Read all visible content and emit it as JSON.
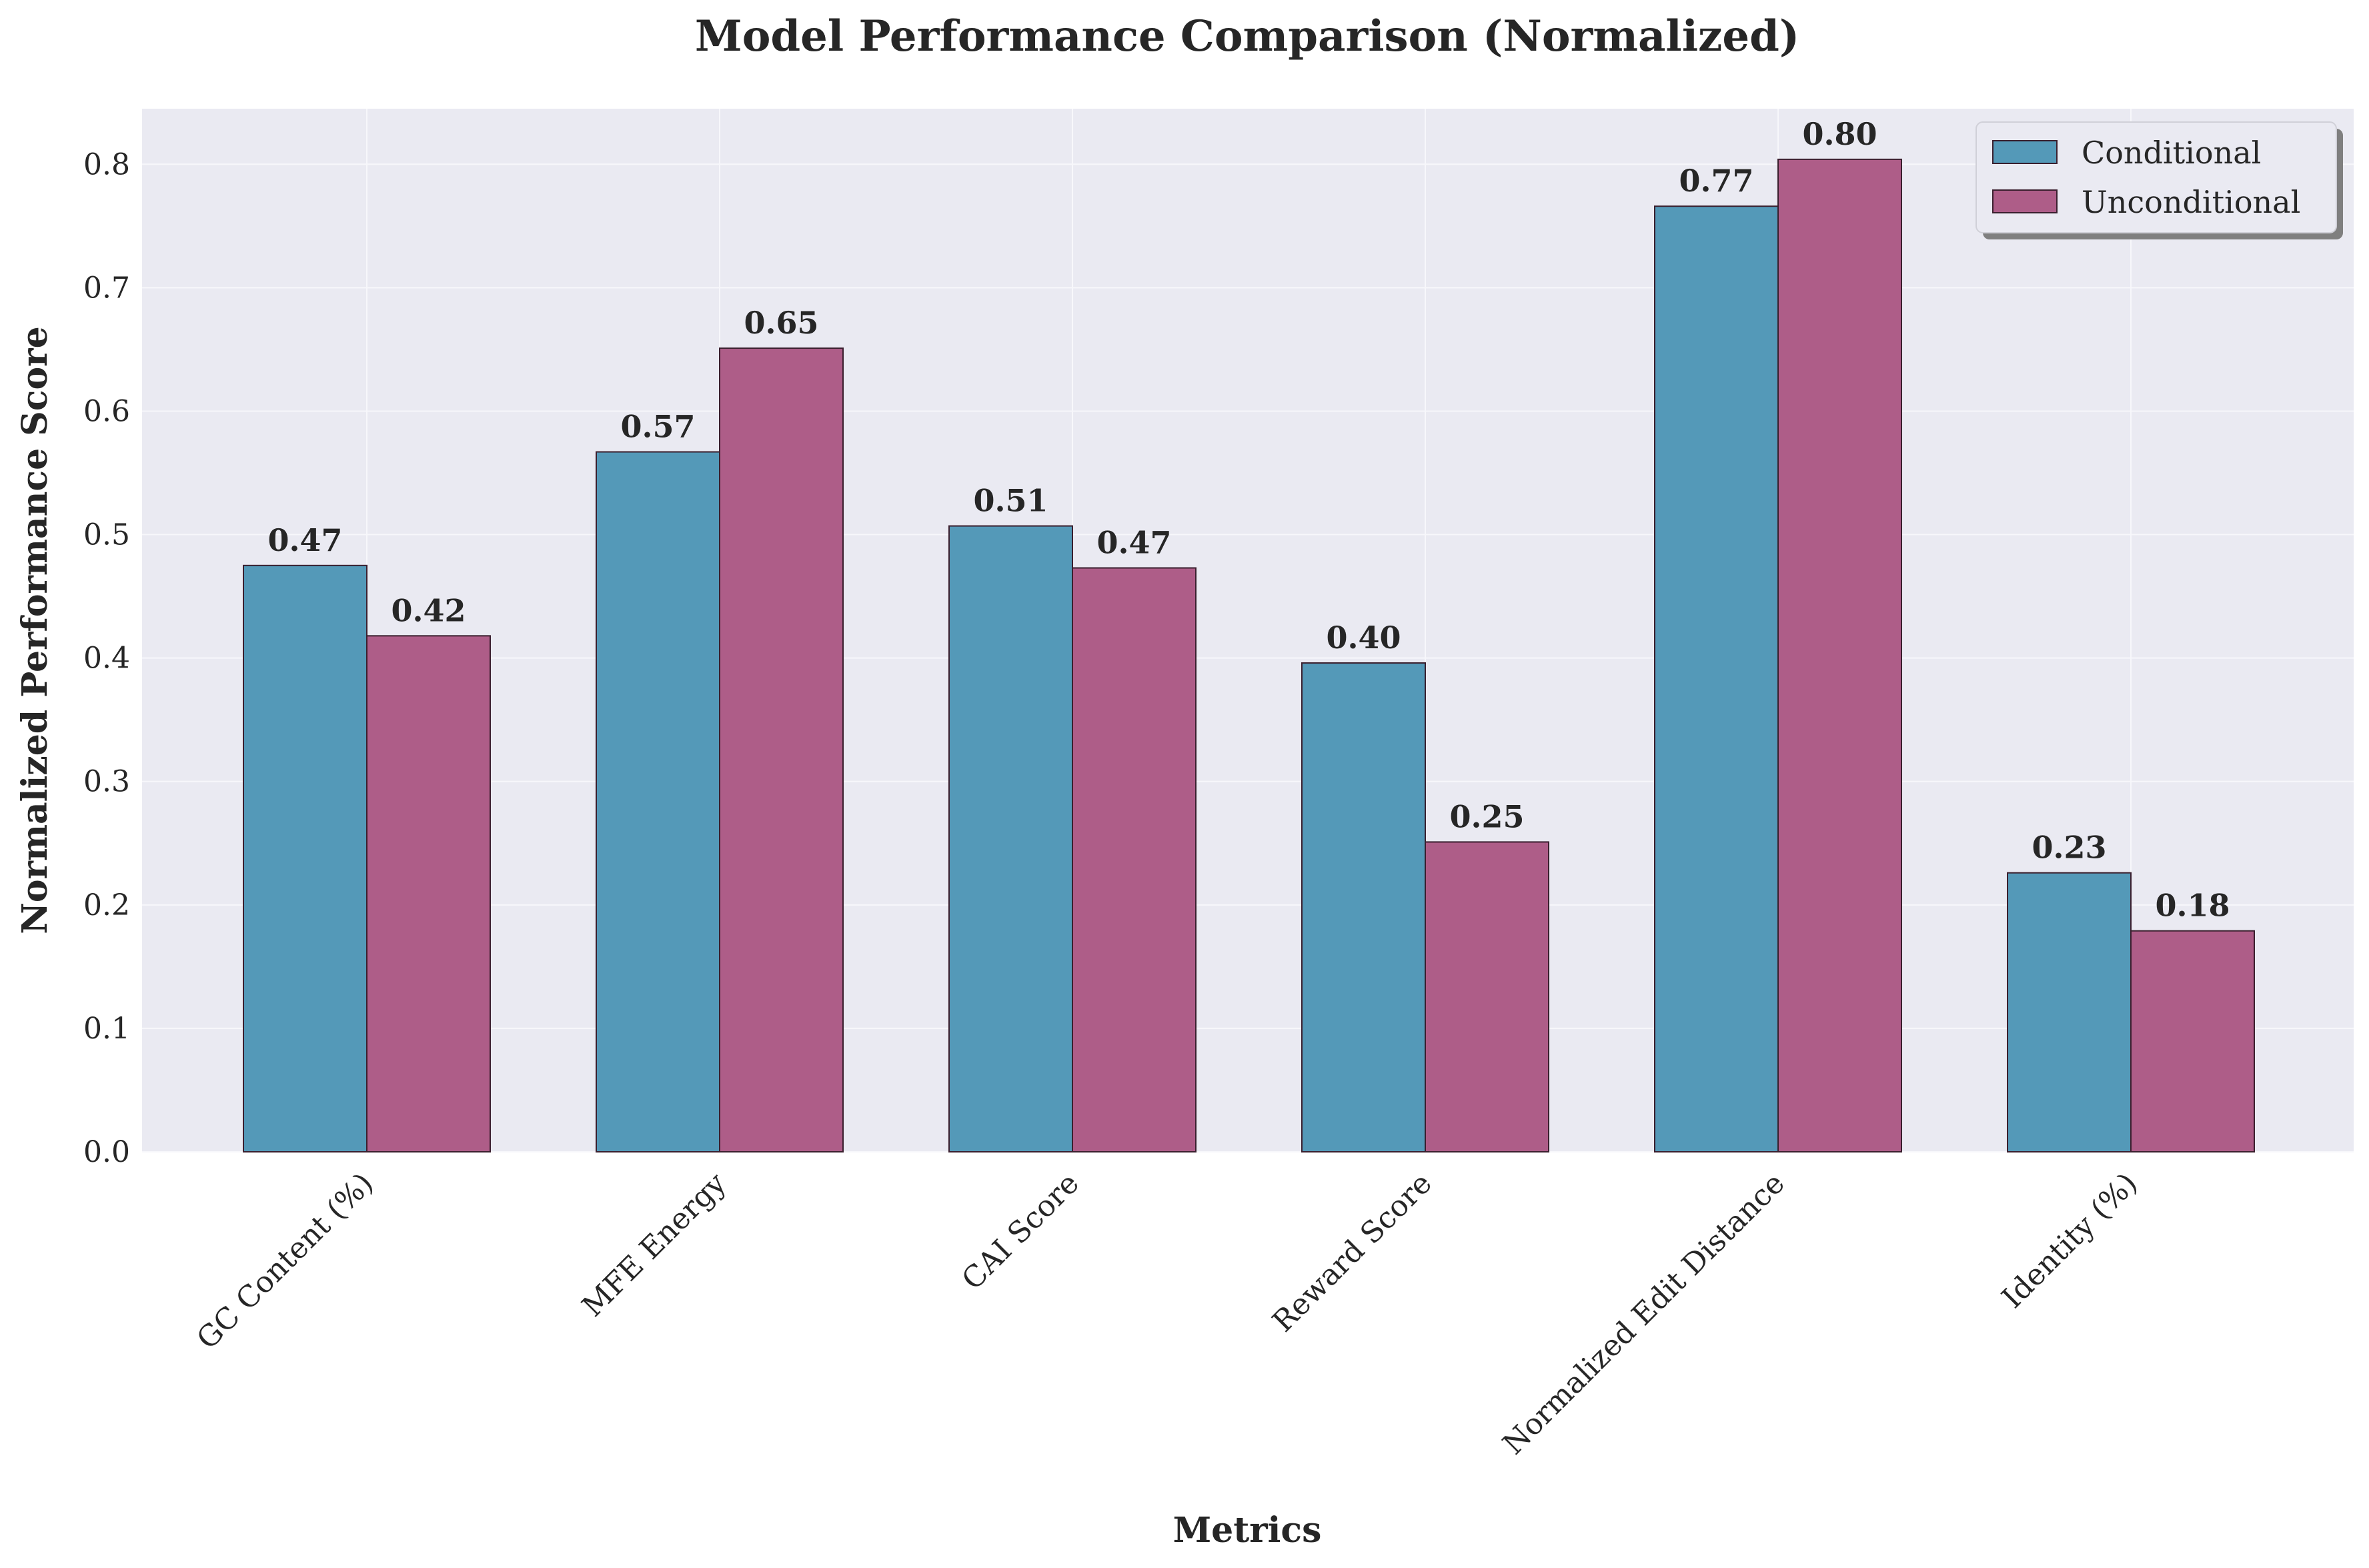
{
  "chart_data": {
    "type": "bar",
    "title": "Model Performance Comparison (Normalized)",
    "xlabel": "Metrics",
    "ylabel": "Normalized Performance Score",
    "ylim": [
      0,
      0.845
    ],
    "yticks": [
      "0.0",
      "0.1",
      "0.2",
      "0.3",
      "0.4",
      "0.5",
      "0.6",
      "0.7",
      "0.8"
    ],
    "categories": [
      "GC Content (%)",
      "MFE Energy",
      "CAI Score",
      "Reward Score",
      "Normalized Edit Distance",
      "Identity (%)"
    ],
    "series": [
      {
        "name": "Conditional",
        "color": "#5499b8",
        "values": [
          0.475,
          0.567,
          0.507,
          0.396,
          0.766,
          0.226
        ],
        "labels": [
          "0.47",
          "0.57",
          "0.51",
          "0.40",
          "0.77",
          "0.23"
        ]
      },
      {
        "name": "Unconditional",
        "color": "#ae5d88",
        "values": [
          0.418,
          0.651,
          0.473,
          0.251,
          0.804,
          0.179
        ],
        "labels": [
          "0.42",
          "0.65",
          "0.47",
          "0.25",
          "0.80",
          "0.18"
        ]
      }
    ],
    "grid": true,
    "legend_position": "top-right",
    "background_color": "#eaeaf2",
    "edge_color": "#3a1f2e"
  }
}
